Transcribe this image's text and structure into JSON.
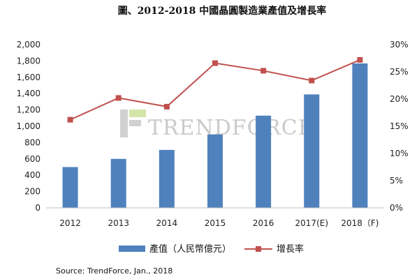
{
  "chart_data": {
    "type": "bar",
    "title": "圖、2012-2018 中國晶圓製造業產值及增長率",
    "categories": [
      "2012",
      "2013",
      "2014",
      "2015",
      "2016",
      "2017(E)",
      "2018（F)"
    ],
    "series": [
      {
        "name": "產值（人民幣億元）",
        "type": "bar",
        "axis": "left",
        "values": [
          500,
          600,
          710,
          900,
          1130,
          1390,
          1770
        ]
      },
      {
        "name": "增長率",
        "type": "line",
        "axis": "right",
        "values": [
          16.2,
          20.2,
          18.6,
          26.6,
          25.2,
          23.4,
          27.2
        ]
      }
    ],
    "left_axis": {
      "ylim": [
        0,
        2000
      ],
      "ticks": [
        "0",
        "200",
        "400",
        "600",
        "800",
        "1,000",
        "1,200",
        "1,400",
        "1,600",
        "1,800",
        "2,000"
      ]
    },
    "right_axis": {
      "ylim": [
        0,
        30
      ],
      "ticks": [
        "0%",
        "5%",
        "10%",
        "15%",
        "20%",
        "25%",
        "30%"
      ]
    },
    "legend_position": "bottom",
    "colors": {
      "bar": "#4f81bd",
      "line": "#c0504d"
    },
    "watermark": "TRENDFORCE",
    "source": "Source: TrendForce, Jan., 2018"
  }
}
